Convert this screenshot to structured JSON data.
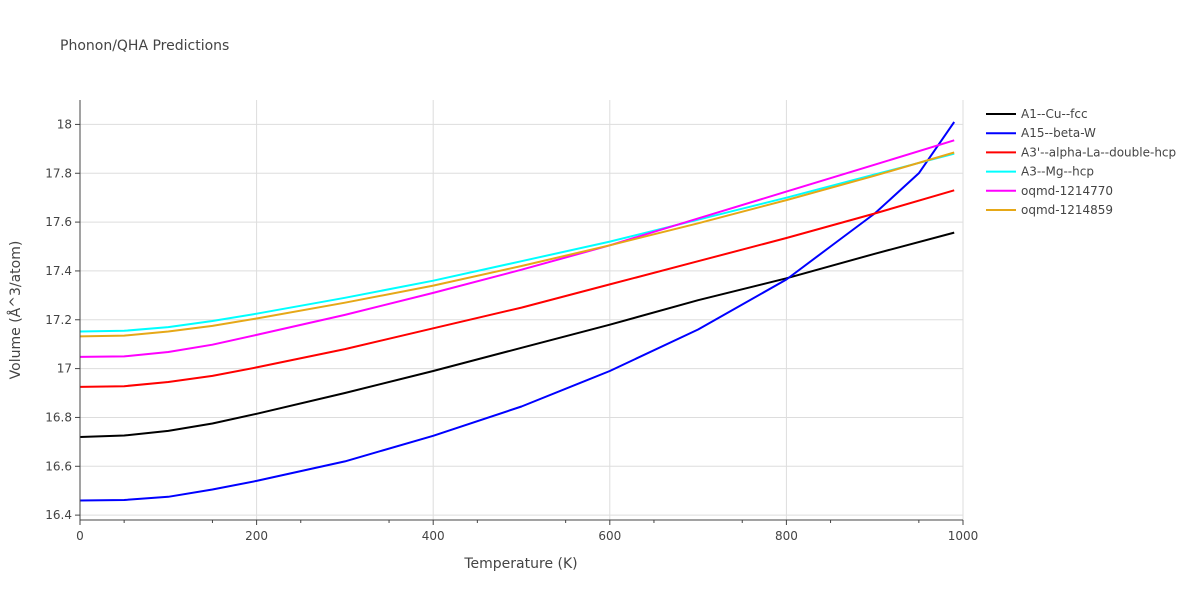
{
  "chart_data": {
    "type": "line",
    "title": "Phonon/QHA Predictions",
    "xlabel": "Temperature (K)",
    "ylabel": "Volume (Å^3/atom)",
    "xlim": [
      0,
      1000
    ],
    "ylim": [
      16.38,
      18.1
    ],
    "xticks": [
      0,
      200,
      400,
      600,
      800,
      1000
    ],
    "xtick_labels": [
      "0",
      "200",
      "400",
      "600",
      "800",
      "1000"
    ],
    "yticks": [
      16.4,
      16.6,
      16.8,
      17.0,
      17.2,
      17.4,
      17.6,
      17.8,
      18.0
    ],
    "ytick_labels": [
      "16.4",
      "16.6",
      "16.8",
      "17",
      "17.2",
      "17.4",
      "17.6",
      "17.8",
      "18"
    ],
    "grid": true,
    "legend_position": "right",
    "series": [
      {
        "name": "A1--Cu--fcc",
        "color": "#000000",
        "x": [
          0,
          50,
          100,
          150,
          200,
          300,
          400,
          500,
          600,
          700,
          800,
          900,
          990
        ],
        "y": [
          16.72,
          16.726,
          16.745,
          16.775,
          16.815,
          16.9,
          16.99,
          17.085,
          17.18,
          17.28,
          17.37,
          17.47,
          17.557
        ]
      },
      {
        "name": "A15--beta-W",
        "color": "#0000ff",
        "x": [
          0,
          50,
          100,
          150,
          200,
          300,
          400,
          500,
          600,
          700,
          800,
          850,
          900,
          950,
          990
        ],
        "y": [
          16.46,
          16.462,
          16.475,
          16.505,
          16.54,
          16.62,
          16.725,
          16.845,
          16.99,
          17.16,
          17.365,
          17.5,
          17.635,
          17.8,
          18.01
        ]
      },
      {
        "name": "A3'--alpha-La--double-hcp",
        "color": "#ff0000",
        "x": [
          0,
          50,
          100,
          150,
          200,
          300,
          400,
          500,
          600,
          700,
          800,
          900,
          990
        ],
        "y": [
          16.925,
          16.928,
          16.945,
          16.97,
          17.005,
          17.08,
          17.165,
          17.25,
          17.345,
          17.44,
          17.535,
          17.635,
          17.73
        ]
      },
      {
        "name": "A3--Mg--hcp",
        "color": "#00ffff",
        "x": [
          0,
          50,
          100,
          150,
          200,
          300,
          400,
          500,
          600,
          700,
          800,
          900,
          990
        ],
        "y": [
          17.152,
          17.155,
          17.17,
          17.195,
          17.225,
          17.29,
          17.36,
          17.44,
          17.52,
          17.61,
          17.7,
          17.795,
          17.88
        ]
      },
      {
        "name": "oqmd-1214770",
        "color": "#ff00ff",
        "x": [
          0,
          50,
          100,
          150,
          200,
          300,
          400,
          500,
          600,
          700,
          800,
          900,
          990
        ],
        "y": [
          17.048,
          17.05,
          17.068,
          17.098,
          17.138,
          17.22,
          17.31,
          17.405,
          17.505,
          17.615,
          17.725,
          17.835,
          17.935
        ]
      },
      {
        "name": "oqmd-1214859",
        "color": "#e6a817",
        "x": [
          0,
          50,
          100,
          150,
          200,
          300,
          400,
          500,
          600,
          700,
          800,
          900,
          990
        ],
        "y": [
          17.132,
          17.135,
          17.152,
          17.175,
          17.205,
          17.27,
          17.34,
          17.42,
          17.505,
          17.595,
          17.69,
          17.79,
          17.885
        ]
      }
    ]
  }
}
